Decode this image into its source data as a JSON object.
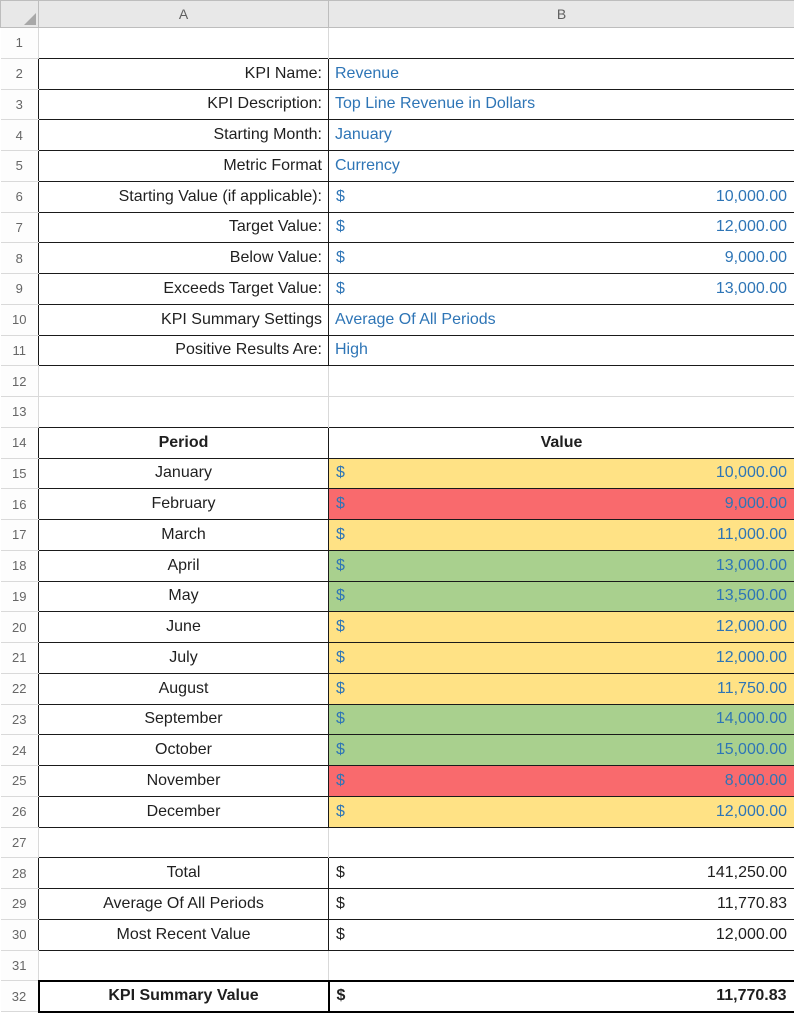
{
  "sheet": {
    "col_headers": [
      "A",
      "B"
    ],
    "colors": {
      "fill_yellow": "#FFE285",
      "fill_red": "#F96A6D",
      "fill_green": "#A9D08E",
      "value_text_blue": "#2E75B6",
      "label_text": "#1F1F1F"
    },
    "rows": [
      {
        "n": "1"
      },
      {
        "n": "2",
        "a": "KPI Name:",
        "b": "Revenue"
      },
      {
        "n": "3",
        "a": "KPI Description:",
        "b": "Top Line Revenue in Dollars"
      },
      {
        "n": "4",
        "a": "Starting Month:",
        "b": "January"
      },
      {
        "n": "5",
        "a": "Metric Format",
        "b": "Currency"
      },
      {
        "n": "6",
        "a": "Starting Value (if applicable):",
        "cur": "$",
        "amt": "10,000.00"
      },
      {
        "n": "7",
        "a": "Target Value:",
        "cur": "$",
        "amt": "12,000.00"
      },
      {
        "n": "8",
        "a": "Below Value:",
        "cur": "$",
        "amt": "9,000.00"
      },
      {
        "n": "9",
        "a": "Exceeds Target Value:",
        "cur": "$",
        "amt": "13,000.00"
      },
      {
        "n": "10",
        "a": "KPI Summary Settings",
        "b": "Average Of All Periods"
      },
      {
        "n": "11",
        "a": "Positive Results Are:",
        "b": "High"
      },
      {
        "n": "12"
      },
      {
        "n": "13"
      },
      {
        "n": "14",
        "a": "Period",
        "b": "Value"
      },
      {
        "n": "15",
        "a": "January",
        "cur": "$",
        "amt": "10,000.00",
        "fill": "yellow"
      },
      {
        "n": "16",
        "a": "February",
        "cur": "$",
        "amt": "9,000.00",
        "fill": "red"
      },
      {
        "n": "17",
        "a": "March",
        "cur": "$",
        "amt": "11,000.00",
        "fill": "yellow"
      },
      {
        "n": "18",
        "a": "April",
        "cur": "$",
        "amt": "13,000.00",
        "fill": "green"
      },
      {
        "n": "19",
        "a": "May",
        "cur": "$",
        "amt": "13,500.00",
        "fill": "green"
      },
      {
        "n": "20",
        "a": "June",
        "cur": "$",
        "amt": "12,000.00",
        "fill": "yellow"
      },
      {
        "n": "21",
        "a": "July",
        "cur": "$",
        "amt": "12,000.00",
        "fill": "yellow"
      },
      {
        "n": "22",
        "a": "August",
        "cur": "$",
        "amt": "11,750.00",
        "fill": "yellow"
      },
      {
        "n": "23",
        "a": "September",
        "cur": "$",
        "amt": "14,000.00",
        "fill": "green"
      },
      {
        "n": "24",
        "a": "October",
        "cur": "$",
        "amt": "15,000.00",
        "fill": "green"
      },
      {
        "n": "25",
        "a": "November",
        "cur": "$",
        "amt": "8,000.00",
        "fill": "red"
      },
      {
        "n": "26",
        "a": "December",
        "cur": "$",
        "amt": "12,000.00",
        "fill": "yellow"
      },
      {
        "n": "27"
      },
      {
        "n": "28",
        "a": "Total",
        "cur": "$",
        "amt": "141,250.00"
      },
      {
        "n": "29",
        "a": "Average Of All Periods",
        "cur": "$",
        "amt": "11,770.83"
      },
      {
        "n": "30",
        "a": "Most Recent Value",
        "cur": "$",
        "amt": "12,000.00"
      },
      {
        "n": "31"
      },
      {
        "n": "32",
        "a": "KPI Summary Value",
        "cur": "$",
        "amt": "11,770.83"
      }
    ]
  }
}
